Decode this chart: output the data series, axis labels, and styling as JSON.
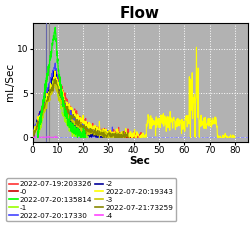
{
  "title": "Flow",
  "xlabel": "Sec",
  "ylabel": "mL/Sec",
  "xlim": [
    0,
    85
  ],
  "ylim": [
    -0.5,
    13
  ],
  "yticks": [
    0,
    5,
    10
  ],
  "xticks": [
    0,
    10,
    20,
    30,
    40,
    50,
    60,
    70,
    80
  ],
  "bg_color": "#b2b2b2",
  "grid_color": "white",
  "hline_color": "#8888ff",
  "title_fontsize": 11,
  "axis_label_fontsize": 7.5,
  "tick_fontsize": 6.5,
  "legend_fontsize": 5.2,
  "legend_entries": [
    {
      "label": "2022-07-19:203326",
      "color": "#ff3333"
    },
    {
      "label": "-0",
      "color": "#cc0000"
    },
    {
      "label": "2022-07-20:135814",
      "color": "#00ff00"
    },
    {
      "label": "-1",
      "color": "#99ff00"
    },
    {
      "label": "2022-07-20:17330",
      "color": "#4444ff"
    },
    {
      "label": "-2",
      "color": "#000099"
    },
    {
      "label": "2022-07-20:19343",
      "color": "#ffff00"
    },
    {
      "label": "-3",
      "color": "#cccc00"
    },
    {
      "label": "2022-07-21:73259",
      "color": "#888800"
    },
    {
      "label": "-4",
      "color": "#ff44ff"
    }
  ]
}
